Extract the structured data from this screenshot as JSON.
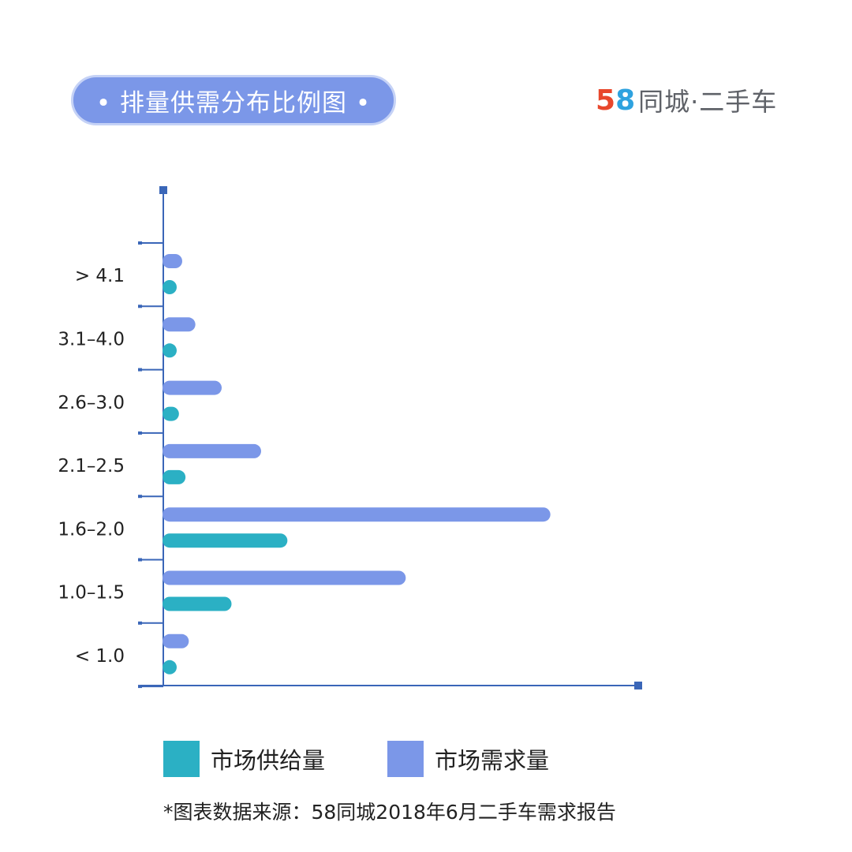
{
  "header": {
    "title": "• 排量供需分布比例图 •",
    "brand_5": "5",
    "brand_8": "8",
    "brand_text": "同城·二手车"
  },
  "colors": {
    "supply": "#2bb0c4",
    "demand": "#7b97e8",
    "axis": "#3a66b8",
    "title_bg": "#7b97e8"
  },
  "chart_data": {
    "type": "bar",
    "orientation": "horizontal",
    "categories": [
      "> 4.1",
      "3.1–4.0",
      "2.6–3.0",
      "2.1–2.5",
      "1.6–2.0",
      "1.0–1.5",
      "< 1.0"
    ],
    "series": [
      {
        "name": "市场需求量",
        "color": "#7b97e8",
        "values": [
          3,
          5,
          9,
          15,
          59,
          37,
          4
        ]
      },
      {
        "name": "市场供给量",
        "color": "#2bb0c4",
        "values": [
          1.5,
          1.5,
          2.5,
          3.5,
          19,
          10.5,
          1.5
        ]
      }
    ],
    "xlim": [
      0,
      72
    ],
    "grid": false,
    "legend_position": "bottom"
  },
  "legend": {
    "supply_label": "市场供给量",
    "demand_label": "市场需求量"
  },
  "footer": {
    "source": "*图表数据来源：58同城2018年6月二手车需求报告"
  }
}
